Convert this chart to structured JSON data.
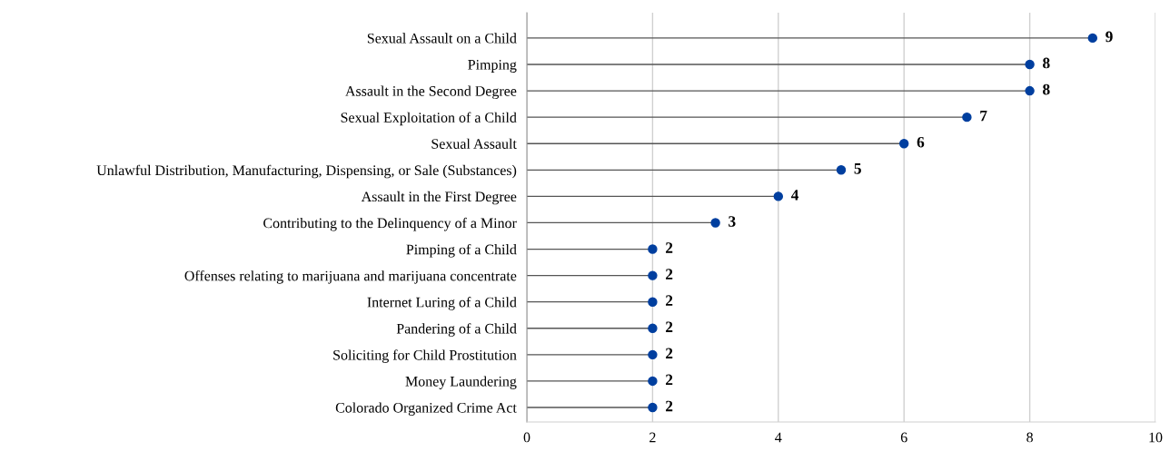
{
  "chart_data": {
    "type": "lollipop",
    "orientation": "horizontal",
    "categories": [
      "Sexual Assault on a Child",
      "Pimping",
      "Assault in the Second Degree",
      "Sexual Exploitation of a Child",
      "Sexual Assault",
      "Unlawful Distribution, Manufacturing, Dispensing, or Sale (Substances)",
      "Assault in the First Degree",
      "Contributing to the Delinquency of a Minor",
      "Pimping of a Child",
      "Offenses relating to marijuana and marijuana concentrate",
      "Internet Luring of a Child",
      "Pandering of a Child",
      "Soliciting for Child Prostitution",
      "Money Laundering",
      "Colorado Organized Crime Act"
    ],
    "values": [
      9,
      8,
      8,
      7,
      6,
      5,
      4,
      3,
      2,
      2,
      2,
      2,
      2,
      2,
      2
    ],
    "color": "#003f9f",
    "xlim": [
      0,
      10
    ],
    "xticks": [
      0,
      2,
      4,
      6,
      8,
      10
    ],
    "grid": "x",
    "data_labels": true,
    "marker": "circle"
  }
}
